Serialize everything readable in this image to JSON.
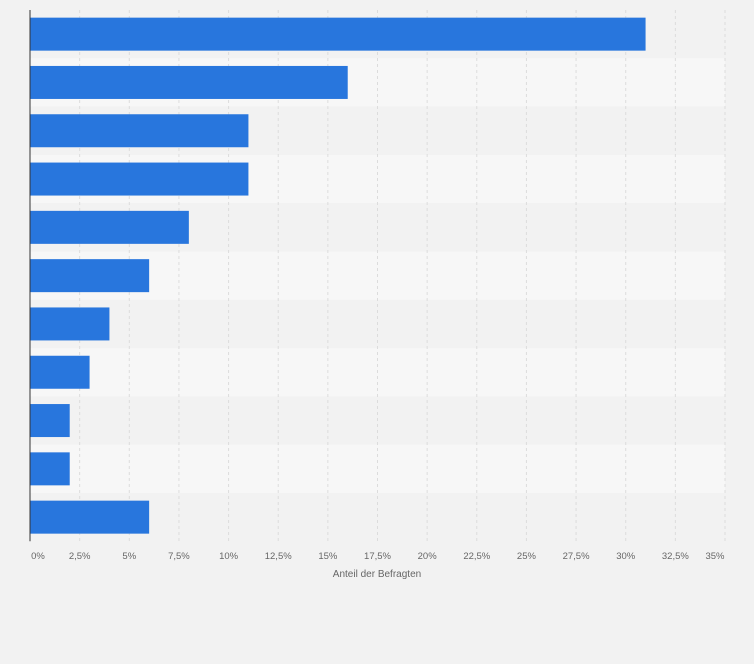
{
  "colors": {
    "background": "#f2f2f2",
    "band_light": "#f7f7f7",
    "band_dark": "#f2f2f2",
    "bar": "#2876dd",
    "grid": "#dcdcdc",
    "axis": "#333333",
    "tick_text": "#666666"
  },
  "chart_data": {
    "type": "bar",
    "orientation": "horizontal",
    "title": "",
    "xlabel": "Anteil der Befragten",
    "ylabel": "",
    "categories": [
      "",
      "",
      "",
      "",
      "",
      "",
      "",
      "",
      "",
      "",
      ""
    ],
    "values": [
      31,
      16,
      11,
      11,
      8,
      6,
      4,
      3,
      2,
      2,
      6
    ],
    "xlim": [
      0,
      35
    ],
    "x_ticks": [
      0,
      2.5,
      5,
      7.5,
      10,
      12.5,
      15,
      17.5,
      20,
      22.5,
      25,
      27.5,
      30,
      32.5,
      35
    ],
    "x_tick_labels": [
      "0%",
      "2,5%",
      "5%",
      "7,5%",
      "10%",
      "12,5%",
      "15%",
      "17,5%",
      "20%",
      "22,5%",
      "25%",
      "27,5%",
      "30%",
      "32,5%",
      "35%"
    ],
    "grid": true,
    "legend": "none"
  }
}
